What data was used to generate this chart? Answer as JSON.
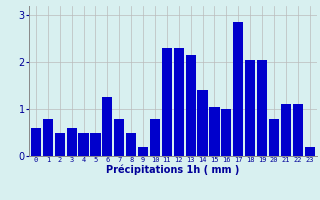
{
  "hours": [
    0,
    1,
    2,
    3,
    4,
    5,
    6,
    7,
    8,
    9,
    10,
    11,
    12,
    13,
    14,
    15,
    16,
    17,
    18,
    19,
    20,
    21,
    22,
    23
  ],
  "values": [
    0.6,
    0.8,
    0.5,
    0.6,
    0.5,
    0.5,
    1.25,
    0.8,
    0.5,
    0.2,
    0.8,
    2.3,
    2.3,
    2.15,
    1.4,
    1.05,
    1.0,
    2.85,
    2.05,
    2.05,
    0.8,
    1.1,
    1.1,
    0.2
  ],
  "bar_color": "#0000cc",
  "background_color": "#d8f0f0",
  "grid_color": "#bbbbbb",
  "xlabel": "Précipitations 1h ( mm )",
  "xlabel_color": "#000099",
  "tick_color": "#000099",
  "ylim": [
    0,
    3.2
  ],
  "yticks": [
    0,
    1,
    2,
    3
  ],
  "figsize": [
    3.2,
    2.0
  ],
  "dpi": 100
}
